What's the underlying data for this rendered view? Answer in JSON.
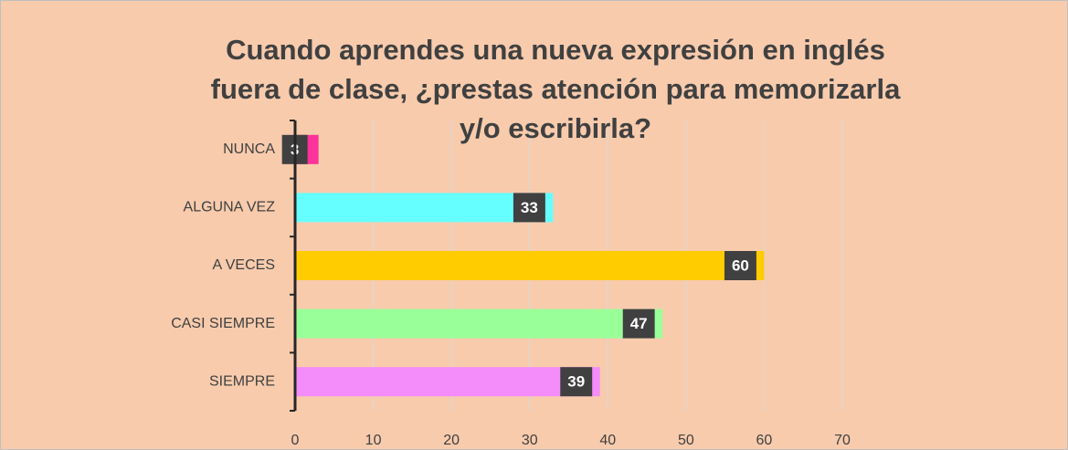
{
  "chart_data": {
    "type": "bar",
    "orientation": "horizontal",
    "title": [
      "Cuando aprendes una nueva expresión en inglés",
      "fuera de clase, ¿prestas atención para memorizarla",
      "y/o escribirla?"
    ],
    "categories": [
      "NUNCA",
      "ALGUNA VEZ",
      "A VECES",
      "CASI SIEMPRE",
      "SIEMPRE"
    ],
    "values": [
      3,
      33,
      60,
      47,
      39
    ],
    "colors": [
      "#ff3399",
      "#66ffff",
      "#ffcc00",
      "#99ff99",
      "#f48cfa"
    ],
    "xlim": [
      0,
      70
    ],
    "xticks": [
      0,
      10,
      20,
      30,
      40,
      50,
      60,
      70
    ],
    "grid": true
  }
}
